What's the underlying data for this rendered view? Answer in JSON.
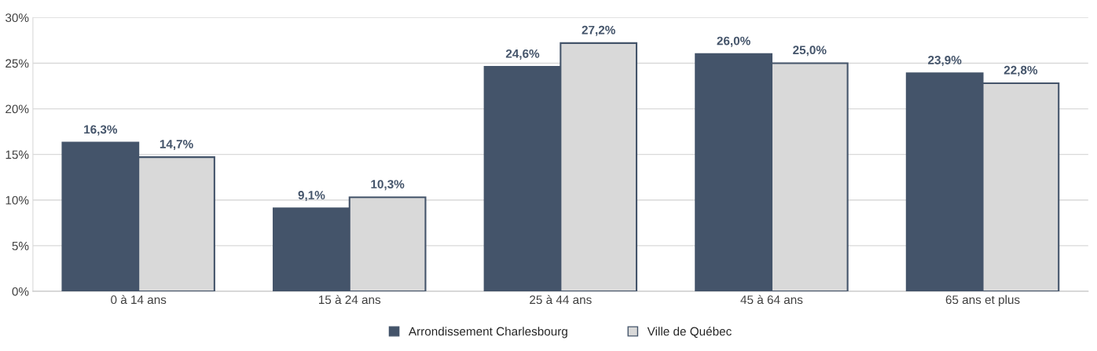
{
  "chart_data": {
    "type": "bar",
    "categories": [
      "0 à 14 ans",
      "15 à 24 ans",
      "25 à 44 ans",
      "45 à 64 ans",
      "65 ans et plus"
    ],
    "series": [
      {
        "name": "Arrondissement Charlesbourg",
        "color": "#44546a",
        "values": [
          16.3,
          9.1,
          24.6,
          26.0,
          23.9
        ],
        "value_labels": [
          "16,3%",
          "9,1%",
          "24,6%",
          "26,0%",
          "23,9%"
        ]
      },
      {
        "name": "Ville de Québec",
        "color": "#d9d9d9",
        "values": [
          14.7,
          10.3,
          27.2,
          25.0,
          22.8
        ],
        "value_labels": [
          "14,7%",
          "10,3%",
          "27,2%",
          "25,0%",
          "22,8%"
        ]
      }
    ],
    "ylim": [
      0,
      30
    ],
    "yticks": [
      {
        "value": 0,
        "label": "0%"
      },
      {
        "value": 5,
        "label": "5%"
      },
      {
        "value": 10,
        "label": "10%"
      },
      {
        "value": 15,
        "label": "15%"
      },
      {
        "value": 20,
        "label": "20%"
      },
      {
        "value": 25,
        "label": "25%"
      },
      {
        "value": 30,
        "label": "30%"
      }
    ],
    "grid": "y",
    "legend": "bottom"
  }
}
